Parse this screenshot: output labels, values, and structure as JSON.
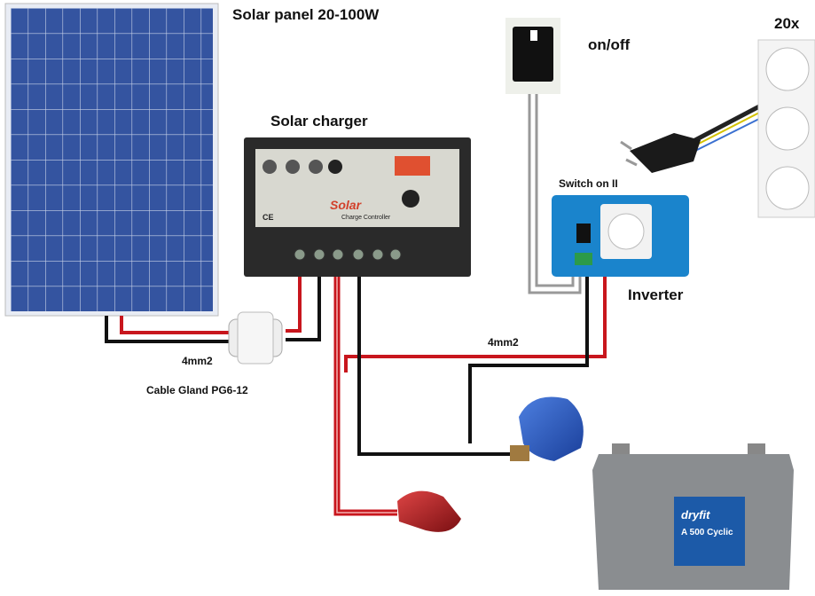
{
  "labels": {
    "panel": "Solar panel 20-100W",
    "switch": "on/off",
    "sockets": "20x",
    "charger": "Solar charger",
    "inverter_note": "Switch on II",
    "inverter": "Inverter",
    "wire_panel": "4mm2",
    "wire_battery": "4mm2",
    "gland": "Cable Gland PG6-12"
  },
  "device_print": {
    "charger_brand": "Solar",
    "charger_model": "Charge Controller",
    "charger_mark": "CE",
    "battery_brand": "dryfit",
    "battery_model": "A 500 Cyclic"
  }
}
